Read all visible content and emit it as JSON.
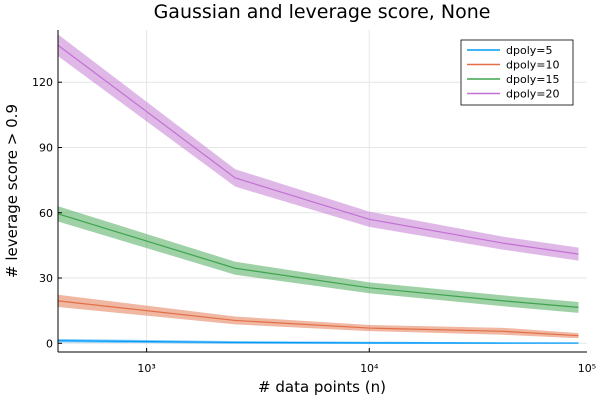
{
  "chart_data": {
    "type": "line",
    "title": "Gaussian and leverage score, None",
    "xlabel": "# data points (n)",
    "ylabel": "# leverage score > 0.9",
    "x_scale": "log10",
    "xlim": [
      400,
      95000
    ],
    "ylim": [
      -4,
      144
    ],
    "x_ticks": [
      {
        "value": 1000,
        "label": "10³"
      },
      {
        "value": 10000,
        "label": "10⁴"
      },
      {
        "value": 100000,
        "label": "10⁵"
      }
    ],
    "y_ticks": [
      0,
      30,
      60,
      90,
      120
    ],
    "grid": true,
    "legend_position": "top-right",
    "x": [
      400,
      2500,
      10000,
      40000,
      87000
    ],
    "series": [
      {
        "name": "dpoly=5",
        "color": "#009af9",
        "values": [
          1.2,
          0.4,
          0.2,
          0.1,
          0.1
        ],
        "band": [
          0.8,
          0.6,
          0.5,
          0.4,
          0.3
        ]
      },
      {
        "name": "dpoly=10",
        "color": "#e26f46",
        "values": [
          19.5,
          10.5,
          7,
          5.5,
          3.5
        ],
        "band": [
          2.8,
          1.8,
          1.4,
          1.6,
          1.2
        ]
      },
      {
        "name": "dpoly=15",
        "color": "#3da44d",
        "values": [
          59.5,
          34.5,
          25.5,
          19.5,
          16.5
        ],
        "band": [
          3.5,
          3,
          2.5,
          2.5,
          2.5
        ]
      },
      {
        "name": "dpoly=20",
        "color": "#c271d2",
        "values": [
          137,
          76,
          57,
          46,
          41
        ],
        "band": [
          5,
          4,
          3.5,
          3,
          3
        ]
      }
    ]
  }
}
